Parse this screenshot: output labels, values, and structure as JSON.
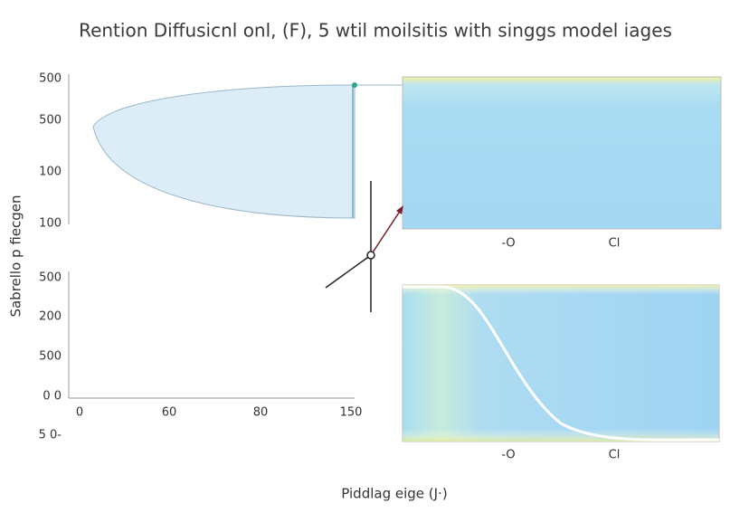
{
  "title": "Rention Diffusicnl onl, (F), 5 wtil moilsitis with singgs model iages",
  "y_axis_label": "Sabrello p fiecgen",
  "x_axis_label": "Piddlag eige (J·)",
  "left_y_ticks": [
    "500",
    "500",
    "100",
    "100",
    "500",
    "200",
    "500",
    "0 0",
    "5 0-"
  ],
  "left_x_ticks": [
    "0",
    "60",
    "80",
    "150"
  ],
  "panel_top_x_ticks": [
    "-O",
    "Cl"
  ],
  "panel_bottom_x_ticks": [
    "-O",
    "Cl"
  ]
}
